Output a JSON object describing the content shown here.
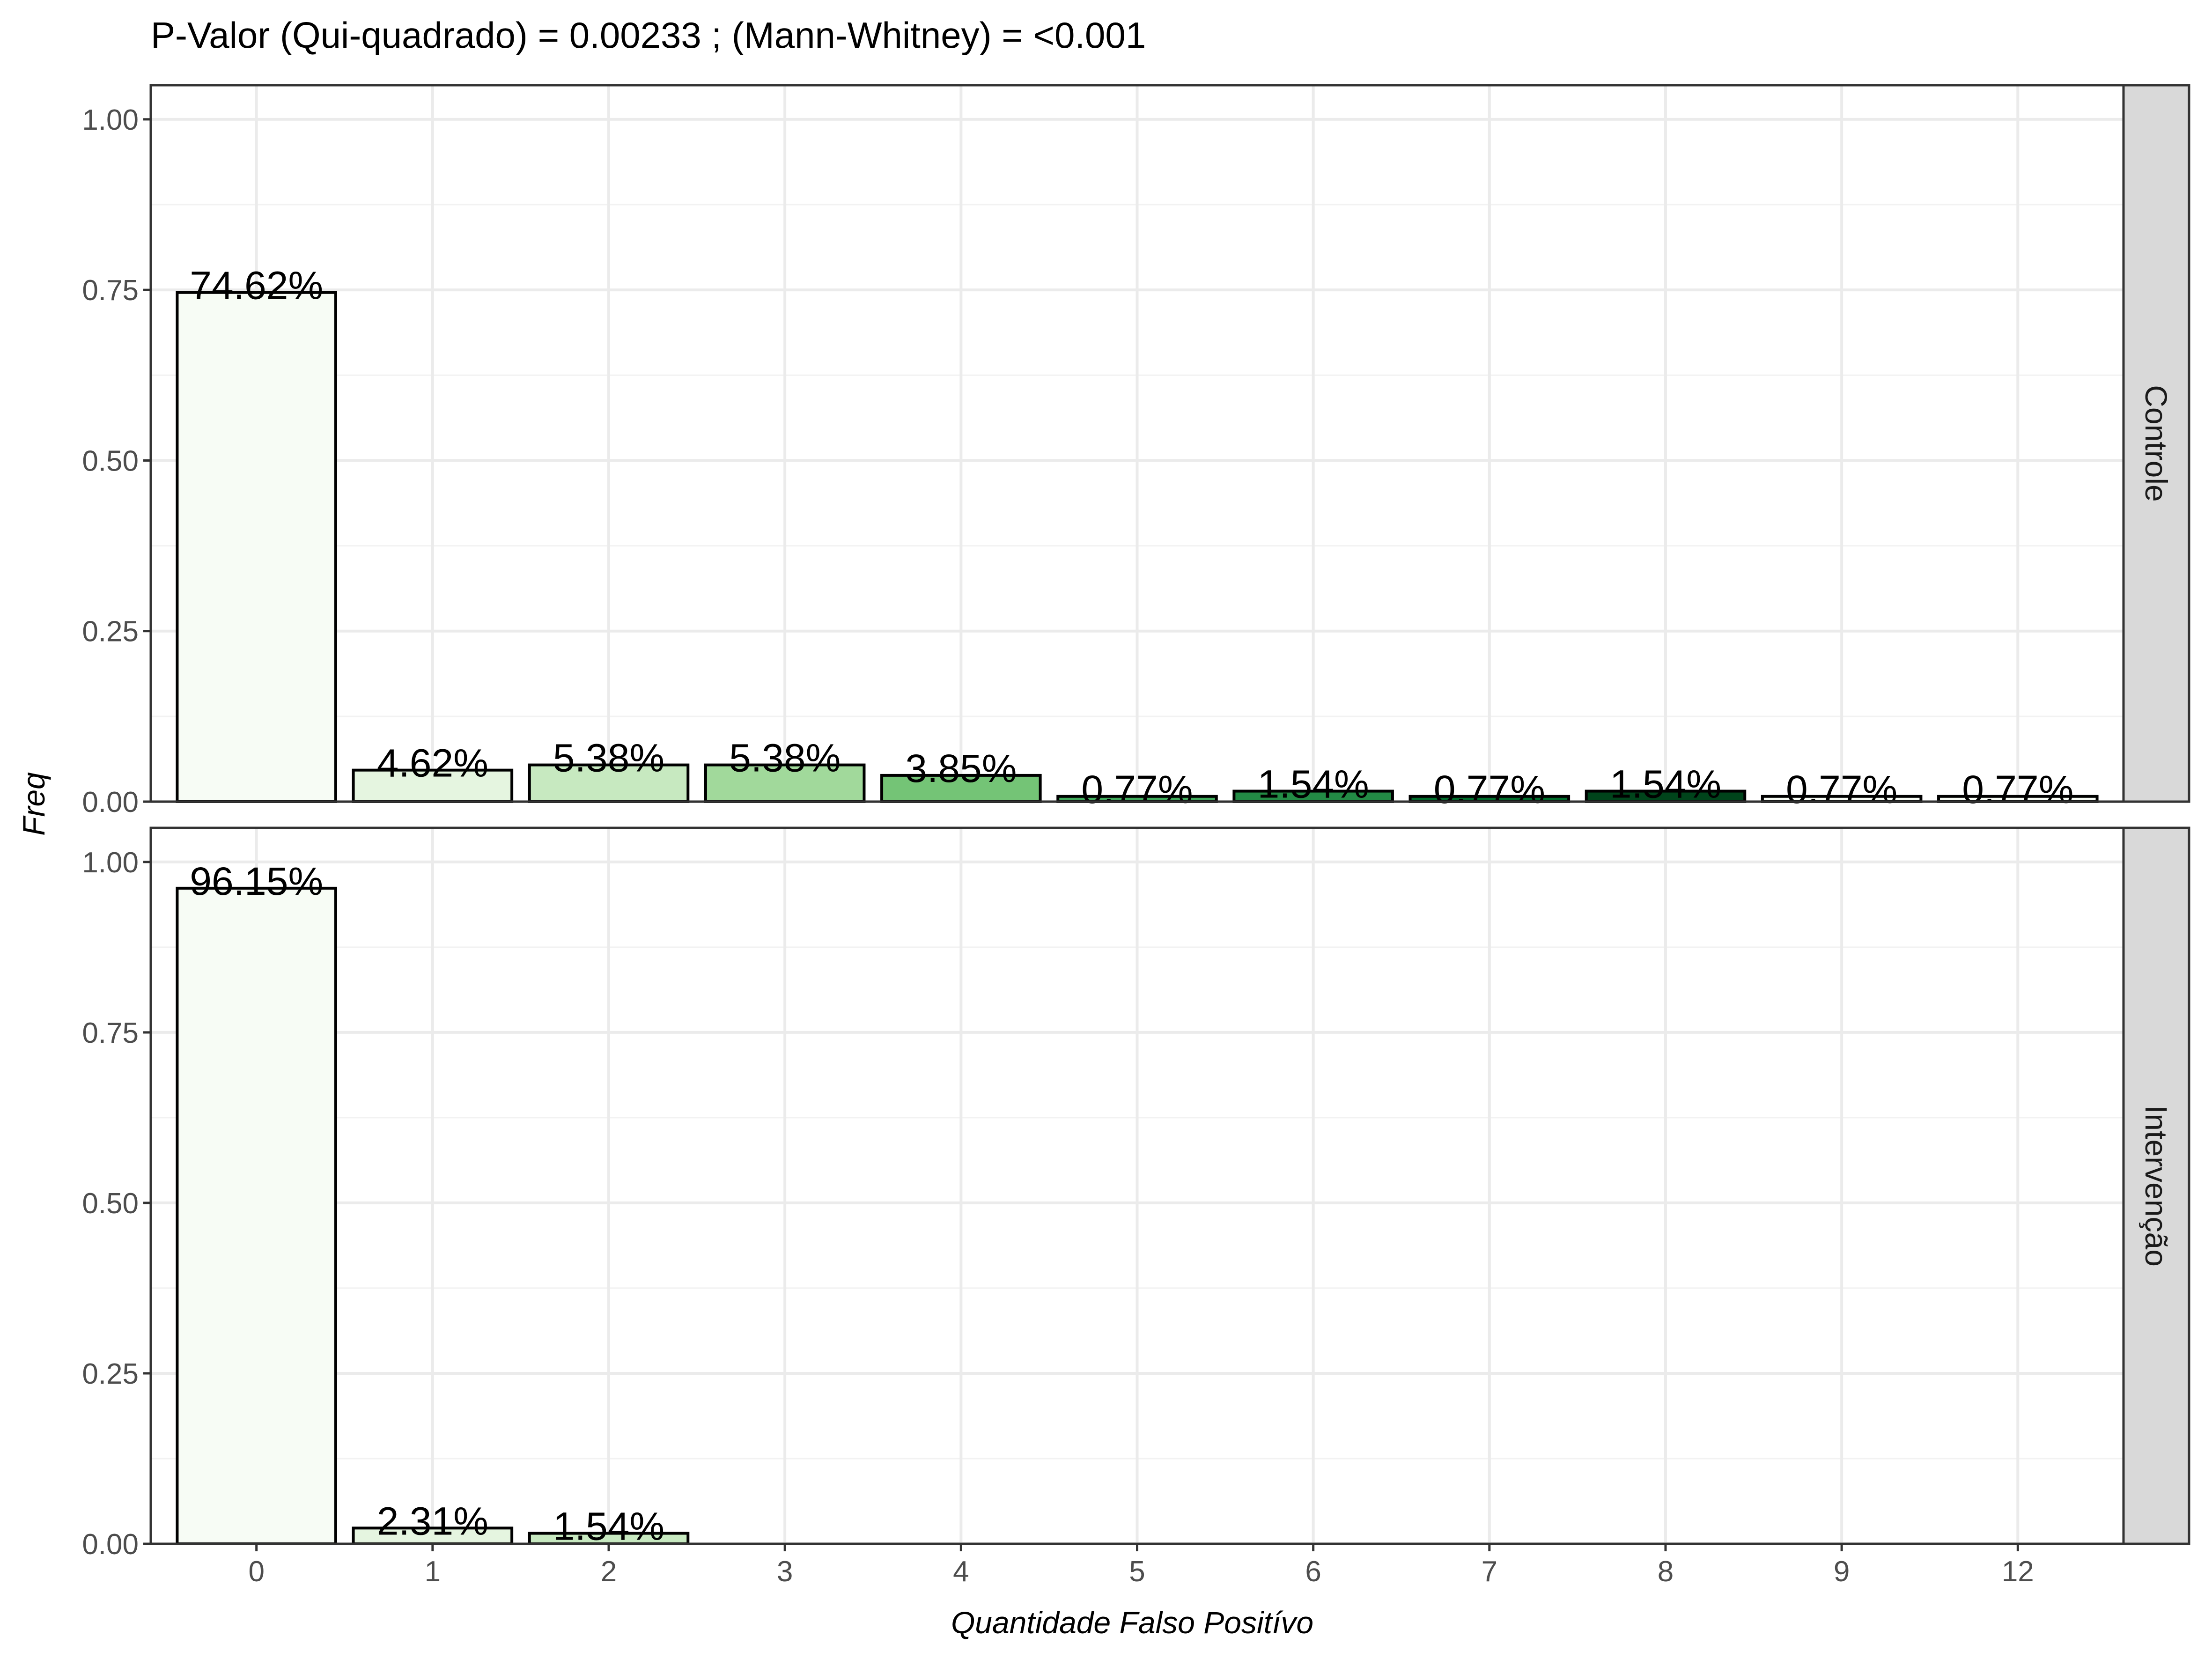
{
  "chart_data": {
    "type": "bar",
    "title": "P-Valor (Qui-quadrado) = 0.00233 ; (Mann-Whitney) = <0.001",
    "xlabel": "Quantidade Falso Positívo",
    "ylabel": "Freq",
    "categories": [
      "0",
      "1",
      "2",
      "3",
      "4",
      "5",
      "6",
      "7",
      "8",
      "9",
      "12"
    ],
    "ylim": [
      0,
      1.05
    ],
    "yticks": [
      "0.00",
      "0.25",
      "0.50",
      "0.75",
      "1.00"
    ],
    "grid": true,
    "bar_colors": [
      "#f7fcf5",
      "#e5f5e0",
      "#c7e9c0",
      "#a1d99b",
      "#74c476",
      "#41ab5d",
      "#238b45",
      "#006d2c",
      "#00441b",
      "#f7fcf5",
      "#f7fcf5"
    ],
    "facets": [
      {
        "name": "Controle",
        "values": [
          0.7462,
          0.0462,
          0.0538,
          0.0538,
          0.0385,
          0.0077,
          0.0154,
          0.0077,
          0.0154,
          0.0077,
          0.0077
        ],
        "labels": [
          "74.62%",
          "4.62%",
          "5.38%",
          "5.38%",
          "3.85%",
          "0.77%",
          "1.54%",
          "0.77%",
          "1.54%",
          "0.77%",
          "0.77%"
        ]
      },
      {
        "name": "Intervenção",
        "values": [
          0.9615,
          0.0231,
          0.0154
        ],
        "labels": [
          "96.15%",
          "2.31%",
          "1.54%"
        ]
      }
    ]
  }
}
